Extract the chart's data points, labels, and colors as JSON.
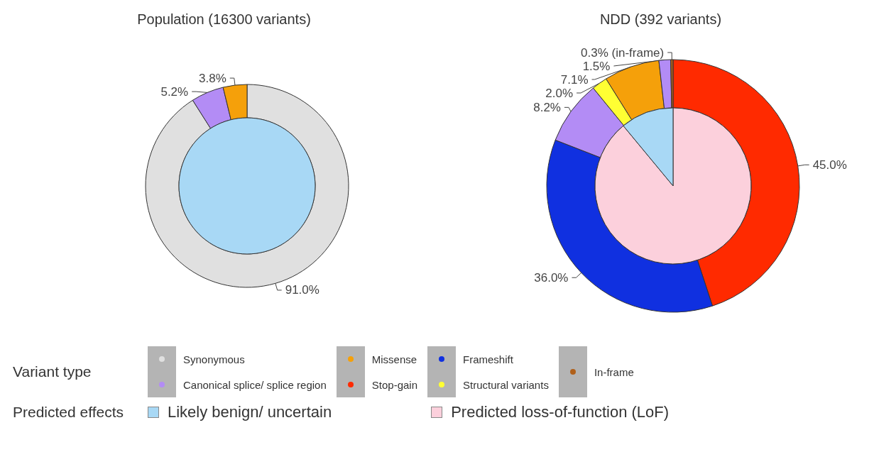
{
  "chart_data": [
    {
      "type": "donut",
      "title": "Population (16300 variants)",
      "legend": "bottom",
      "legend_title": "Variant type",
      "categories": [
        "Synonymous",
        "Canonical splice/ splice region",
        "Missense"
      ],
      "values": [
        91.0,
        5.2,
        3.8
      ],
      "colors": [
        "#e0e0e0",
        "#b38cf5",
        "#f5a00a"
      ],
      "value_labels": [
        "91.0%",
        "5.2%",
        "3.8%"
      ]
    },
    {
      "type": "pie",
      "legend": "bottom",
      "legend_title": "Predicted effects",
      "categories": [
        "Likely benign/ uncertain"
      ],
      "values": [
        100
      ],
      "colors": [
        "#a8d8f5"
      ]
    },
    {
      "type": "donut",
      "title": "NDD (392 variants)",
      "legend": "bottom",
      "categories": [
        "Stop-gain",
        "Frameshift",
        null,
        "Structural variants",
        null,
        null,
        "In-frame"
      ],
      "values": [
        45.0,
        36.0,
        8.2,
        2.0,
        7.1,
        1.5,
        0.3
      ],
      "colors": [
        "#ff2a00",
        "#1030e0",
        "#b38cf5",
        "#ffff33",
        "#f5a00a",
        "#b38cf5",
        "#b0601a"
      ],
      "value_labels": [
        "45.0%",
        "36.0%",
        "8.2%",
        "2.0%",
        "7.1%",
        "1.5%",
        "0.3% (in-frame)"
      ]
    },
    {
      "type": "pie",
      "legend": "bottom",
      "categories": [
        "Predicted loss-of-function (LoF)",
        null
      ],
      "values": [
        89,
        11
      ],
      "colors": [
        "#fcd0dc",
        "#a8d8f5"
      ]
    }
  ]
}
